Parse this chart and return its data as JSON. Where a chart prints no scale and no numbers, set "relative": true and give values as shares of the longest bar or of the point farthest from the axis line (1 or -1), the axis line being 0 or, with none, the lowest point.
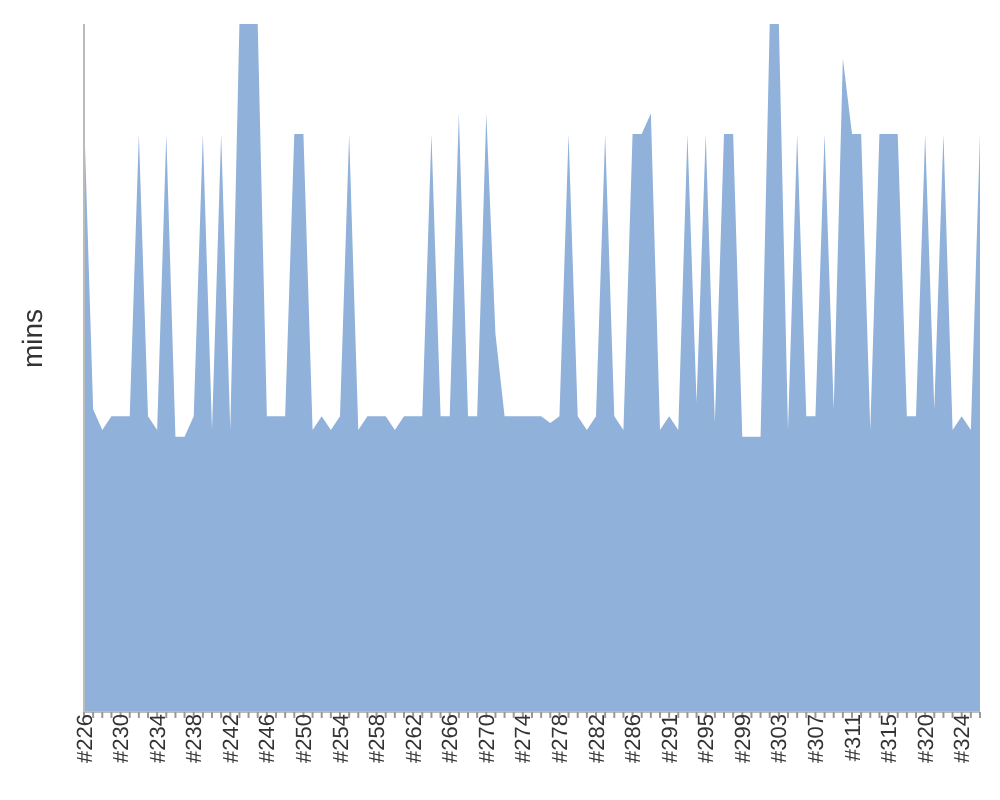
{
  "chart_data": {
    "type": "area",
    "ylabel": "mins",
    "relative": true,
    "grid": false,
    "legend": false,
    "categories": [
      "#226",
      null,
      null,
      null,
      "#230",
      null,
      null,
      null,
      "#234",
      null,
      null,
      null,
      "#238",
      null,
      null,
      null,
      "#242",
      null,
      null,
      null,
      "#246",
      null,
      null,
      null,
      "#250",
      null,
      null,
      null,
      "#254",
      null,
      null,
      null,
      "#258",
      null,
      null,
      null,
      "#262",
      null,
      null,
      null,
      "#266",
      null,
      null,
      null,
      "#270",
      null,
      null,
      null,
      "#274",
      null,
      null,
      null,
      "#278",
      null,
      null,
      null,
      "#282",
      null,
      null,
      null,
      "#286",
      null,
      null,
      null,
      "#291",
      null,
      null,
      null,
      "#295",
      null,
      null,
      null,
      "#299",
      null,
      null,
      null,
      "#303",
      null,
      null,
      null,
      "#307",
      null,
      null,
      null,
      "#311",
      null,
      null,
      null,
      "#315",
      null,
      null,
      null,
      "#320",
      null,
      null,
      null,
      "#324",
      null,
      null
    ],
    "series": [
      {
        "color": "#8fb1da",
        "values": [
          0.87,
          0.44,
          0.41,
          0.43,
          0.43,
          0.43,
          0.84,
          0.43,
          0.41,
          0.84,
          0.4,
          0.4,
          0.43,
          0.84,
          0.41,
          0.84,
          0.41,
          1,
          1,
          1,
          0.43,
          0.43,
          0.43,
          0.84,
          0.84,
          0.41,
          0.43,
          0.41,
          0.43,
          0.84,
          0.41,
          0.43,
          0.43,
          0.43,
          0.41,
          0.43,
          0.43,
          0.43,
          0.84,
          0.43,
          0.43,
          0.87,
          0.43,
          0.43,
          0.87,
          0.55,
          0.43,
          0.43,
          0.43,
          0.43,
          0.43,
          0.42,
          0.43,
          0.84,
          0.43,
          0.41,
          0.43,
          0.84,
          0.43,
          0.41,
          0.84,
          0.84,
          0.87,
          0.41,
          0.43,
          0.41,
          0.84,
          0.45,
          0.84,
          0.42,
          0.84,
          0.84,
          0.4,
          0.4,
          0.4,
          1,
          1,
          0.41,
          0.84,
          0.43,
          0.43,
          0.84,
          0.44,
          0.95,
          0.84,
          0.84,
          0.41,
          0.84,
          0.84,
          0.84,
          0.43,
          0.43,
          0.84,
          0.44,
          0.84,
          0.41,
          0.43,
          0.41,
          0.84
        ]
      }
    ]
  }
}
